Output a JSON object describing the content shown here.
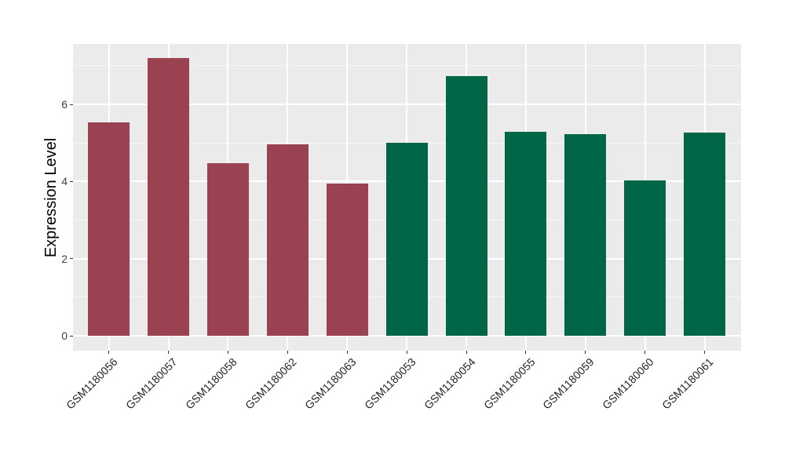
{
  "figure": {
    "background": "#FFFFFF",
    "panel_background": "#EBEBEB",
    "gridline_color": "#FFFFFF",
    "tick_color": "#333333",
    "axis_text_color": "#404040",
    "axis_title_color": "#000000"
  },
  "chart_data": {
    "type": "bar",
    "title": "",
    "xlabel": "",
    "ylabel": "Expression Level",
    "categories": [
      "GSM1180056",
      "GSM1180057",
      "GSM1180058",
      "GSM1180062",
      "GSM1180063",
      "GSM1180053",
      "GSM1180054",
      "GSM1180055",
      "GSM1180059",
      "GSM1180060",
      "GSM1180061"
    ],
    "values": [
      5.53,
      7.2,
      4.47,
      4.96,
      3.94,
      5.01,
      6.73,
      5.29,
      5.22,
      4.03,
      5.27
    ],
    "groups": [
      "red",
      "red",
      "red",
      "red",
      "red",
      "green",
      "green",
      "green",
      "green",
      "green",
      "green"
    ],
    "group_colors": {
      "red": "#9A4152",
      "green": "#006647"
    },
    "yticks": [
      0,
      2,
      4,
      6
    ],
    "yticks_minor": [
      1,
      3,
      5,
      7
    ],
    "ylim": [
      -0.39,
      7.57
    ],
    "grid": "on",
    "legend": "none",
    "bar_width_fraction": 0.7,
    "x_label_angle": 45
  }
}
